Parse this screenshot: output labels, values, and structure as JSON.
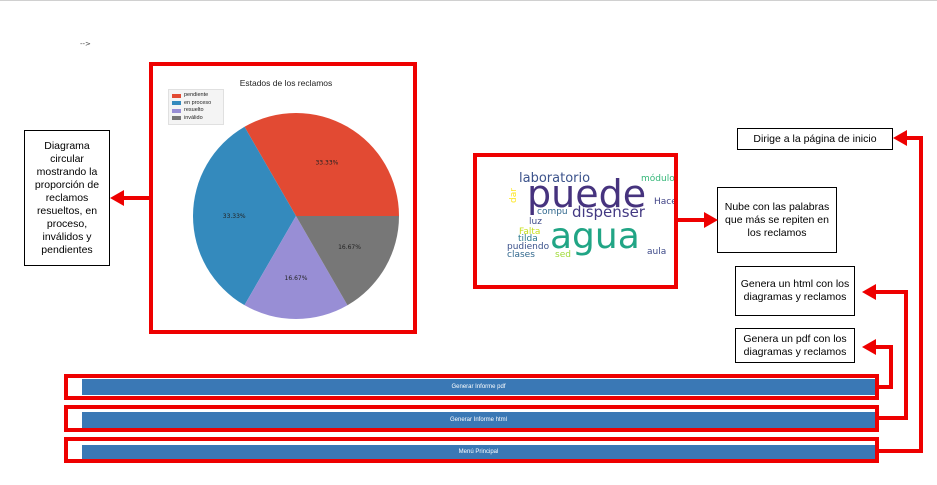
{
  "stray_text": "-->",
  "pie_chart": {
    "chart_data": {
      "type": "pie",
      "title": "Estados de los reclamos",
      "categories": [
        "pendiente",
        "en proceso",
        "resuelto",
        "inválido"
      ],
      "values": [
        33.33,
        33.33,
        16.67,
        16.67
      ],
      "labels": [
        "33.33%",
        "33.33%",
        "16.67%",
        "16.67%"
      ],
      "colors": [
        "#e24a33",
        "#348abd",
        "#988ed5",
        "#777777"
      ],
      "legend": "top-left"
    }
  },
  "word_cloud": {
    "words": [
      {
        "text": "laboratorio",
        "color": "#3b528b"
      },
      {
        "text": "puede",
        "color": "#46337e"
      },
      {
        "text": "módulo",
        "color": "#35b779"
      },
      {
        "text": "dar",
        "color": "#fde725"
      },
      {
        "text": "compu",
        "color": "#31688e"
      },
      {
        "text": "dispenser",
        "color": "#443a83"
      },
      {
        "text": "Hace",
        "color": "#414487"
      },
      {
        "text": "Falta",
        "color": "#c8e020"
      },
      {
        "text": "agua",
        "color": "#21a585"
      },
      {
        "text": "luz",
        "color": "#3e4a89"
      },
      {
        "text": "tilda",
        "color": "#2a788e"
      },
      {
        "text": "pudiendo",
        "color": "#3b528b"
      },
      {
        "text": "clases",
        "color": "#31688e"
      },
      {
        "text": "sed",
        "color": "#a0da39"
      },
      {
        "text": "aula",
        "color": "#3e4a89"
      }
    ]
  },
  "callouts": {
    "pie": "Diagrama circular mostrando la proporción de reclamos resueltos, en proceso, inválidos y pendientes",
    "cloud": "Nube con las palabras que más se repiten en los reclamos",
    "home": "Dirige a la página de inicio",
    "html": "Genera un html con los diagramas y reclamos",
    "pdf": "Genera un pdf con los diagramas y reclamos"
  },
  "buttons": {
    "pdf": "Generar Informe pdf",
    "html": "Generar Informe html",
    "menu": "Menú Principal"
  },
  "colors": {
    "annotation_red": "#ee0000",
    "button_blue": "#3a78b5"
  }
}
